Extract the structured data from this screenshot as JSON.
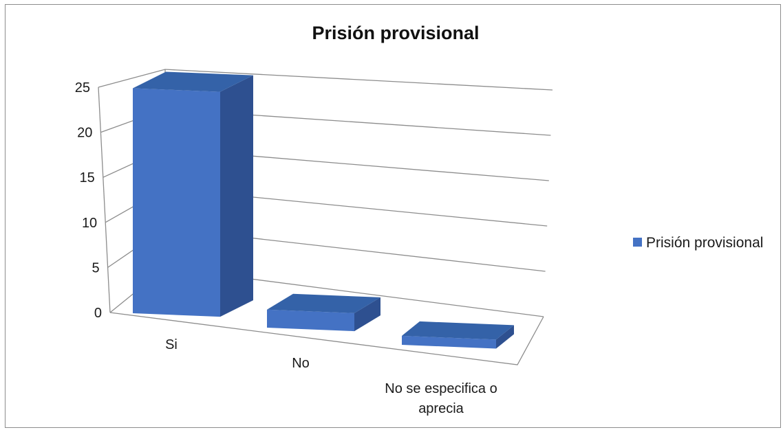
{
  "chart_data": {
    "type": "bar",
    "title": "Prisión provisional",
    "categories": [
      [
        "Si"
      ],
      [
        "No"
      ],
      [
        "No se especifica o",
        "aprecia"
      ]
    ],
    "series": [
      {
        "name": "Prisión provisional",
        "values": [
          25,
          2,
          1
        ]
      }
    ],
    "ylim": [
      0,
      25
    ],
    "yticks": [
      "0",
      "5",
      "10",
      "15",
      "20",
      "25"
    ],
    "grid": true,
    "legend_position": "right",
    "bar_colors": {
      "front": "#4472C4",
      "side": "#2E5090",
      "top": "#3462A8"
    },
    "grid_color": "#8c8c8c"
  }
}
